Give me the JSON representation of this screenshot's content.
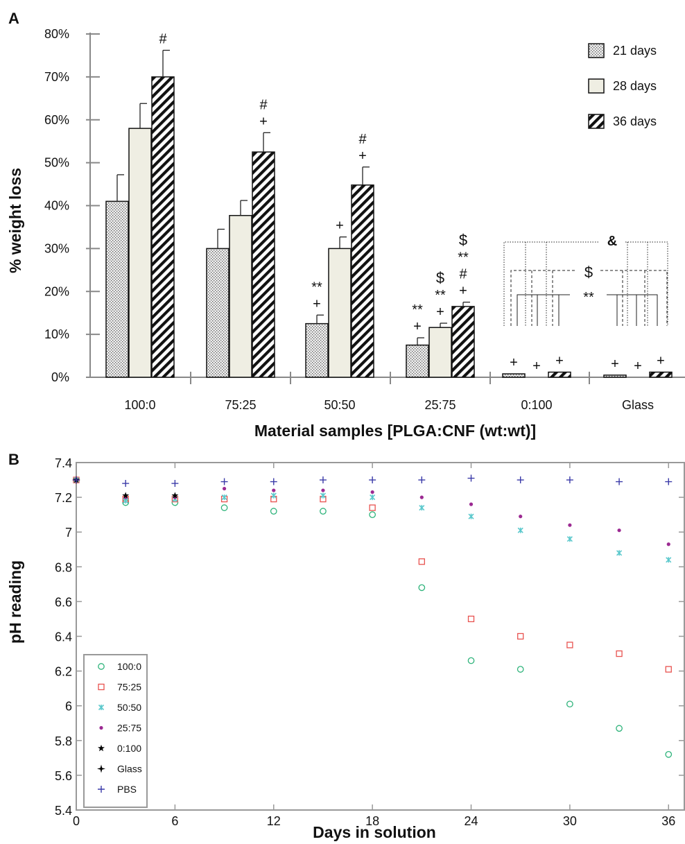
{
  "chart_data": [
    {
      "panel": "A",
      "type": "bar",
      "xlabel": "Material samples [PLGA:CNF (wt:wt)]",
      "ylabel": "% weight loss",
      "ylim": [
        0,
        80
      ],
      "yticks": [
        "0%",
        "10%",
        "20%",
        "30%",
        "40%",
        "50%",
        "60%",
        "70%",
        "80%"
      ],
      "categories": [
        "100:0",
        "75:25",
        "50:50",
        "25:75",
        "0:100",
        "Glass"
      ],
      "legend_position": "top-right",
      "series": [
        {
          "name": "21 days",
          "values": [
            41,
            30,
            12.5,
            7.5,
            0.8,
            0.5
          ],
          "errors": [
            6.2,
            4.5,
            2.0,
            1.7,
            0,
            0
          ],
          "pattern": "dots"
        },
        {
          "name": "28 days",
          "values": [
            58,
            37.7,
            30,
            11.6,
            0,
            0
          ],
          "errors": [
            5.8,
            3.5,
            2.7,
            1.0,
            0,
            0
          ],
          "pattern": "solid"
        },
        {
          "name": "36 days",
          "values": [
            70,
            52.5,
            44.8,
            16.5,
            1.2,
            1.2
          ],
          "errors": [
            6.2,
            4.5,
            4.2,
            1.0,
            0,
            0
          ],
          "pattern": "stripes"
        }
      ],
      "annotations": [
        {
          "category": 0,
          "series": 2,
          "lines": [
            "#"
          ]
        },
        {
          "category": 1,
          "series": 2,
          "lines": [
            "#",
            "+"
          ]
        },
        {
          "category": 2,
          "series": 0,
          "lines": [
            "**",
            "+"
          ]
        },
        {
          "category": 2,
          "series": 1,
          "lines": [
            "+"
          ]
        },
        {
          "category": 2,
          "series": 2,
          "lines": [
            "#",
            "+"
          ]
        },
        {
          "category": 3,
          "series": 0,
          "lines": [
            "**",
            "+"
          ]
        },
        {
          "category": 3,
          "series": 1,
          "lines": [
            "$",
            "**",
            "+"
          ]
        },
        {
          "category": 3,
          "series": 2,
          "lines": [
            "$",
            "**",
            "#",
            "+"
          ]
        },
        {
          "category": 4,
          "series": 0,
          "lines": [
            "+"
          ]
        },
        {
          "category": 4,
          "series": 1,
          "lines": [
            "+"
          ]
        },
        {
          "category": 4,
          "series": 2,
          "lines": [
            "+"
          ]
        },
        {
          "category": 5,
          "series": 0,
          "lines": [
            "+"
          ]
        },
        {
          "category": 5,
          "series": 1,
          "lines": [
            "+"
          ]
        },
        {
          "category": 5,
          "series": 2,
          "lines": [
            "+"
          ]
        }
      ],
      "bracket_labels": [
        "&",
        "$",
        "**"
      ]
    },
    {
      "panel": "B",
      "type": "scatter",
      "xlabel": "Days in solution",
      "ylabel": "pH reading",
      "xlim": [
        0,
        37
      ],
      "ylim": [
        5.4,
        7.4
      ],
      "xticks": [
        0,
        6,
        12,
        18,
        24,
        30,
        36
      ],
      "yticks": [
        "5.4",
        "5.6",
        "5.8",
        "6",
        "6.2",
        "6.4",
        "6.6",
        "6.8",
        "7",
        "7.2",
        "7.4"
      ],
      "legend_position": "bottom-left",
      "x": [
        0,
        3,
        6,
        9,
        12,
        15,
        18,
        21,
        24,
        27,
        30,
        33,
        36
      ],
      "series": [
        {
          "name": "100:0",
          "marker": "circle",
          "color": "#2db37a",
          "points": [
            [
              0,
              7.3
            ],
            [
              3,
              7.17
            ],
            [
              6,
              7.17
            ],
            [
              9,
              7.14
            ],
            [
              12,
              7.12
            ],
            [
              15,
              7.12
            ],
            [
              18,
              7.1
            ],
            [
              21,
              6.68
            ],
            [
              24,
              6.26
            ],
            [
              27,
              6.21
            ],
            [
              30,
              6.01
            ],
            [
              33,
              5.87
            ],
            [
              36,
              5.72
            ]
          ]
        },
        {
          "name": "75:25",
          "marker": "square",
          "color": "#e8524f",
          "points": [
            [
              0,
              7.3
            ],
            [
              3,
              7.19
            ],
            [
              6,
              7.19
            ],
            [
              9,
              7.19
            ],
            [
              12,
              7.19
            ],
            [
              15,
              7.19
            ],
            [
              18,
              7.14
            ],
            [
              21,
              6.83
            ],
            [
              24,
              6.5
            ],
            [
              27,
              6.4
            ],
            [
              30,
              6.35
            ],
            [
              33,
              6.3
            ],
            [
              36,
              6.21
            ]
          ]
        },
        {
          "name": "50:50",
          "marker": "x",
          "color": "#5ac8cc",
          "points": [
            [
              0,
              7.3
            ],
            [
              3,
              7.18
            ],
            [
              6,
              7.19
            ],
            [
              9,
              7.2
            ],
            [
              12,
              7.21
            ],
            [
              15,
              7.21
            ],
            [
              18,
              7.2
            ],
            [
              21,
              7.14
            ],
            [
              24,
              7.09
            ],
            [
              27,
              7.01
            ],
            [
              30,
              6.96
            ],
            [
              33,
              6.88
            ],
            [
              36,
              6.84
            ]
          ]
        },
        {
          "name": "25:75",
          "marker": "dot",
          "color": "#9c2a92",
          "points": [
            [
              0,
              7.3
            ],
            [
              3,
              7.2
            ],
            [
              6,
              7.2
            ],
            [
              9,
              7.25
            ],
            [
              12,
              7.24
            ],
            [
              15,
              7.24
            ],
            [
              18,
              7.23
            ],
            [
              21,
              7.2
            ],
            [
              24,
              7.16
            ],
            [
              27,
              7.09
            ],
            [
              30,
              7.04
            ],
            [
              33,
              7.01
            ],
            [
              36,
              6.93
            ]
          ]
        },
        {
          "name": "0:100",
          "marker": "star",
          "color": "#000000",
          "points": [
            [
              0,
              7.3
            ],
            [
              3,
              7.21
            ],
            [
              6,
              7.21
            ]
          ]
        },
        {
          "name": "Glass",
          "marker": "star4",
          "color": "#000000",
          "points": [
            [
              0,
              7.3
            ]
          ]
        },
        {
          "name": "PBS",
          "marker": "plus",
          "color": "#3a3aa8",
          "points": [
            [
              0,
              7.3
            ],
            [
              3,
              7.28
            ],
            [
              6,
              7.28
            ],
            [
              9,
              7.29
            ],
            [
              12,
              7.29
            ],
            [
              15,
              7.3
            ],
            [
              18,
              7.3
            ],
            [
              21,
              7.3
            ],
            [
              24,
              7.31
            ],
            [
              27,
              7.3
            ],
            [
              30,
              7.3
            ],
            [
              33,
              7.29
            ],
            [
              36,
              7.29
            ]
          ]
        }
      ]
    }
  ]
}
